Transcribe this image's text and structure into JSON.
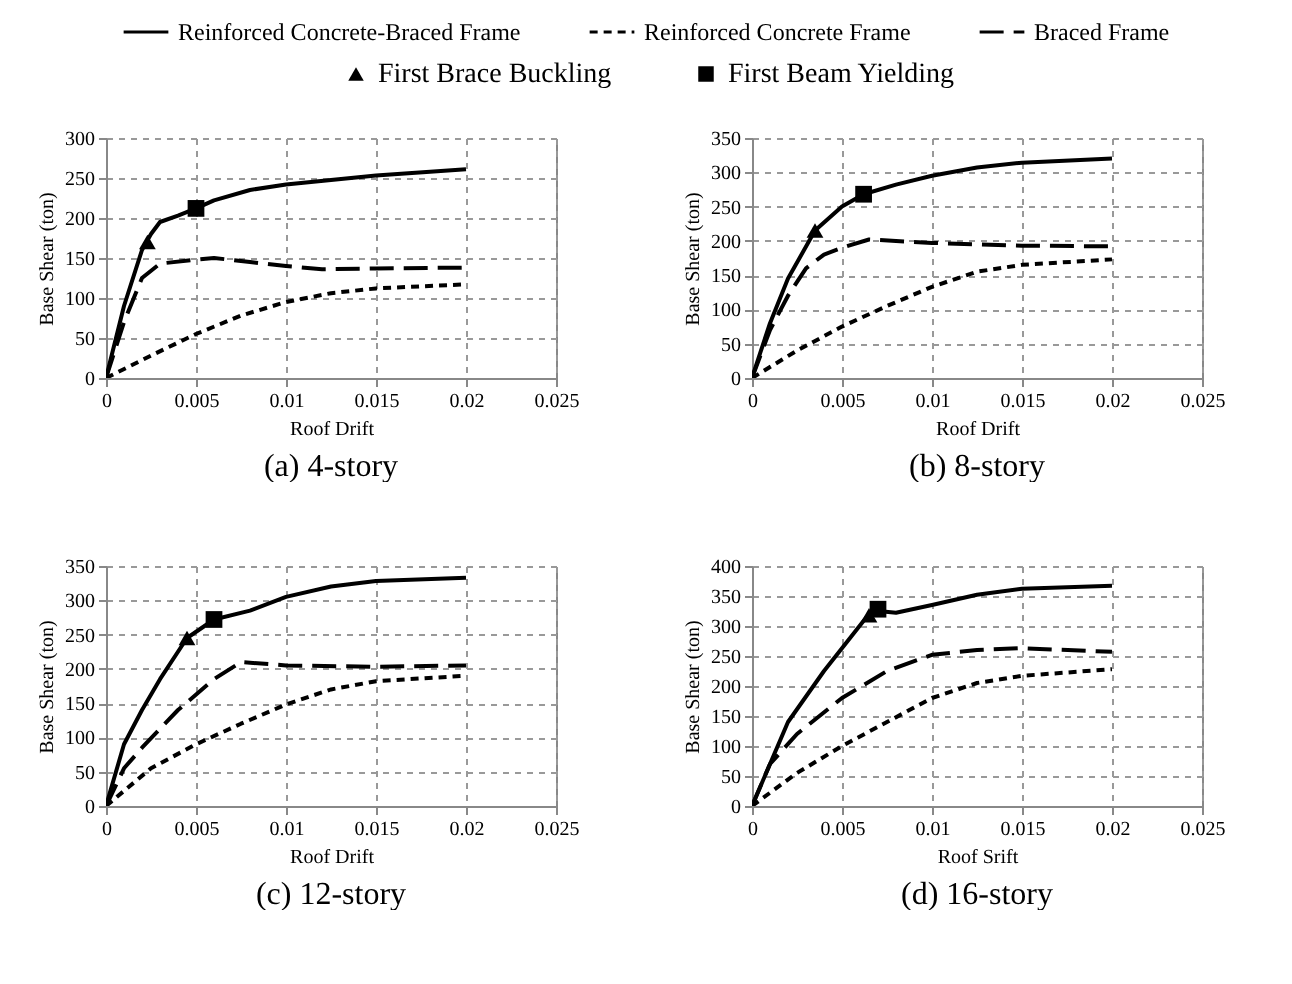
{
  "chart_data": [
    {
      "type": "line",
      "title": "(a) 4-story",
      "xlabel": "Roof Drift",
      "ylabel": "Base Shear (ton)",
      "xlim": [
        0,
        0.025
      ],
      "xticks": [
        0,
        0.005,
        0.01,
        0.015,
        0.02,
        0.025
      ],
      "ylim": [
        0,
        300
      ],
      "yticks": [
        0,
        50,
        100,
        150,
        200,
        250,
        300
      ],
      "grid": true,
      "legend": "top",
      "series": [
        {
          "name": "Reinforced Concrete-Braced Frame",
          "color": "#000000",
          "line_style": "solid",
          "x": [
            0,
            0.001,
            0.002,
            0.0025,
            0.003,
            0.004,
            0.005,
            0.006,
            0.008,
            0.01,
            0.015,
            0.02
          ],
          "values": [
            0,
            90,
            160,
            180,
            195,
            203,
            212,
            222,
            235,
            242,
            253,
            261
          ]
        },
        {
          "name": "Reinforced Concrete Frame",
          "color": "#000000",
          "line_style": "dotted",
          "x": [
            0,
            0.0025,
            0.005,
            0.0075,
            0.01,
            0.0125,
            0.015,
            0.02
          ],
          "values": [
            0,
            28,
            55,
            78,
            95,
            106,
            112,
            117
          ]
        },
        {
          "name": "Braced Frame",
          "color": "#000000",
          "line_style": "dashed",
          "x": [
            0,
            0.001,
            0.002,
            0.003,
            0.005,
            0.006,
            0.008,
            0.01,
            0.012,
            0.015,
            0.02
          ],
          "values": [
            0,
            70,
            125,
            143,
            148,
            150,
            145,
            140,
            136,
            137,
            138
          ]
        },
        {
          "name": "First Brace Buckling",
          "type": "scatter",
          "marker": "triangle",
          "color": "#000000",
          "x": [
            0.0023
          ],
          "values": [
            170
          ]
        },
        {
          "name": "First Beam Yielding",
          "type": "scatter",
          "marker": "square",
          "color": "#000000",
          "x": [
            0.005
          ],
          "values": [
            212
          ]
        }
      ]
    },
    {
      "type": "line",
      "title": "(b) 8-story",
      "xlabel": "Roof  Drift",
      "ylabel": "Base Shear (ton)",
      "xlim": [
        0,
        0.025
      ],
      "xticks": [
        0,
        0.005,
        0.01,
        0.015,
        0.02,
        0.025
      ],
      "ylim": [
        0,
        350
      ],
      "yticks": [
        0,
        50,
        100,
        150,
        200,
        250,
        300,
        350
      ],
      "grid": true,
      "legend": "top",
      "series": [
        {
          "name": "Reinforced Concrete-Braced Frame",
          "color": "#000000",
          "line_style": "solid",
          "x": [
            0,
            0.001,
            0.002,
            0.0035,
            0.005,
            0.0062,
            0.008,
            0.01,
            0.0125,
            0.015,
            0.02
          ],
          "values": [
            0,
            80,
            145,
            215,
            250,
            268,
            282,
            295,
            307,
            314,
            320
          ]
        },
        {
          "name": "Reinforced Concrete Frame",
          "color": "#000000",
          "line_style": "dotted",
          "x": [
            0,
            0.0025,
            0.005,
            0.0075,
            0.01,
            0.0125,
            0.015,
            0.02
          ],
          "values": [
            0,
            40,
            75,
            105,
            133,
            155,
            165,
            173
          ]
        },
        {
          "name": "Braced Frame",
          "color": "#000000",
          "line_style": "dashed",
          "x": [
            0,
            0.001,
            0.002,
            0.003,
            0.004,
            0.005,
            0.0065,
            0.01,
            0.015,
            0.02
          ],
          "values": [
            0,
            70,
            120,
            160,
            180,
            190,
            202,
            197,
            193,
            192
          ]
        },
        {
          "name": "First Brace Buckling",
          "type": "scatter",
          "marker": "triangle",
          "color": "#000000",
          "x": [
            0.0035
          ],
          "values": [
            215
          ]
        },
        {
          "name": "First Beam Yielding",
          "type": "scatter",
          "marker": "square",
          "color": "#000000",
          "x": [
            0.0062
          ],
          "values": [
            268
          ]
        }
      ]
    },
    {
      "type": "line",
      "title": "(c) 12-story",
      "xlabel": "Roof Drift",
      "ylabel": "Base Shear (ton)",
      "xlim": [
        0,
        0.025
      ],
      "xticks": [
        0,
        0.005,
        0.01,
        0.015,
        0.02,
        0.025
      ],
      "ylim": [
        0,
        350
      ],
      "yticks": [
        0,
        50,
        100,
        150,
        200,
        250,
        300,
        350
      ],
      "grid": true,
      "legend": "top",
      "series": [
        {
          "name": "Reinforced Concrete-Braced Frame",
          "color": "#000000",
          "line_style": "solid",
          "x": [
            0,
            0.001,
            0.002,
            0.003,
            0.0045,
            0.006,
            0.008,
            0.01,
            0.0125,
            0.015,
            0.02
          ],
          "values": [
            0,
            90,
            140,
            185,
            245,
            272,
            285,
            305,
            320,
            328,
            333
          ]
        },
        {
          "name": "Reinforced Concrete Frame",
          "color": "#000000",
          "line_style": "dotted",
          "x": [
            0,
            0.0025,
            0.005,
            0.0075,
            0.01,
            0.0125,
            0.015,
            0.02
          ],
          "values": [
            0,
            55,
            90,
            120,
            148,
            170,
            182,
            190
          ]
        },
        {
          "name": "Braced Frame",
          "color": "#000000",
          "line_style": "dashed",
          "x": [
            0,
            0.001,
            0.002,
            0.004,
            0.006,
            0.0075,
            0.01,
            0.015,
            0.02
          ],
          "values": [
            0,
            55,
            85,
            140,
            185,
            210,
            205,
            203,
            205
          ]
        },
        {
          "name": "First Brace Buckling",
          "type": "scatter",
          "marker": "triangle",
          "color": "#000000",
          "x": [
            0.0045
          ],
          "values": [
            245
          ]
        },
        {
          "name": "First Beam Yielding",
          "type": "scatter",
          "marker": "square",
          "color": "#000000",
          "x": [
            0.006
          ],
          "values": [
            272
          ]
        }
      ]
    },
    {
      "type": "line",
      "title": "(d) 16-story",
      "xlabel": "Roof Srift",
      "ylabel": "Base Shear (ton)",
      "xlim": [
        0,
        0.025
      ],
      "xticks": [
        0,
        0.005,
        0.01,
        0.015,
        0.02,
        0.025
      ],
      "ylim": [
        0,
        400
      ],
      "yticks": [
        0,
        50,
        100,
        150,
        200,
        250,
        300,
        350,
        400
      ],
      "grid": true,
      "legend": "top",
      "series": [
        {
          "name": "Reinforced Concrete-Braced Frame",
          "color": "#000000",
          "line_style": "solid",
          "x": [
            0,
            0.001,
            0.002,
            0.004,
            0.0065,
            0.007,
            0.008,
            0.01,
            0.0125,
            0.015,
            0.02
          ],
          "values": [
            0,
            70,
            140,
            225,
            320,
            325,
            322,
            335,
            352,
            362,
            367
          ]
        },
        {
          "name": "Reinforced Concrete Frame",
          "color": "#000000",
          "line_style": "dotted",
          "x": [
            0,
            0.0025,
            0.005,
            0.0075,
            0.01,
            0.0125,
            0.015,
            0.02
          ],
          "values": [
            0,
            55,
            100,
            140,
            180,
            205,
            217,
            228
          ]
        },
        {
          "name": "Braced Frame",
          "color": "#000000",
          "line_style": "dashed",
          "x": [
            0,
            0.001,
            0.0025,
            0.005,
            0.0075,
            0.01,
            0.0125,
            0.015,
            0.02
          ],
          "values": [
            0,
            70,
            120,
            180,
            225,
            252,
            260,
            263,
            257
          ]
        },
        {
          "name": "First Brace Buckling",
          "type": "scatter",
          "marker": "triangle",
          "color": "#000000",
          "x": [
            0.0065
          ],
          "values": [
            318
          ]
        },
        {
          "name": "First Beam Yielding",
          "type": "scatter",
          "marker": "square",
          "color": "#000000",
          "x": [
            0.007
          ],
          "values": [
            328
          ]
        }
      ]
    }
  ]
}
